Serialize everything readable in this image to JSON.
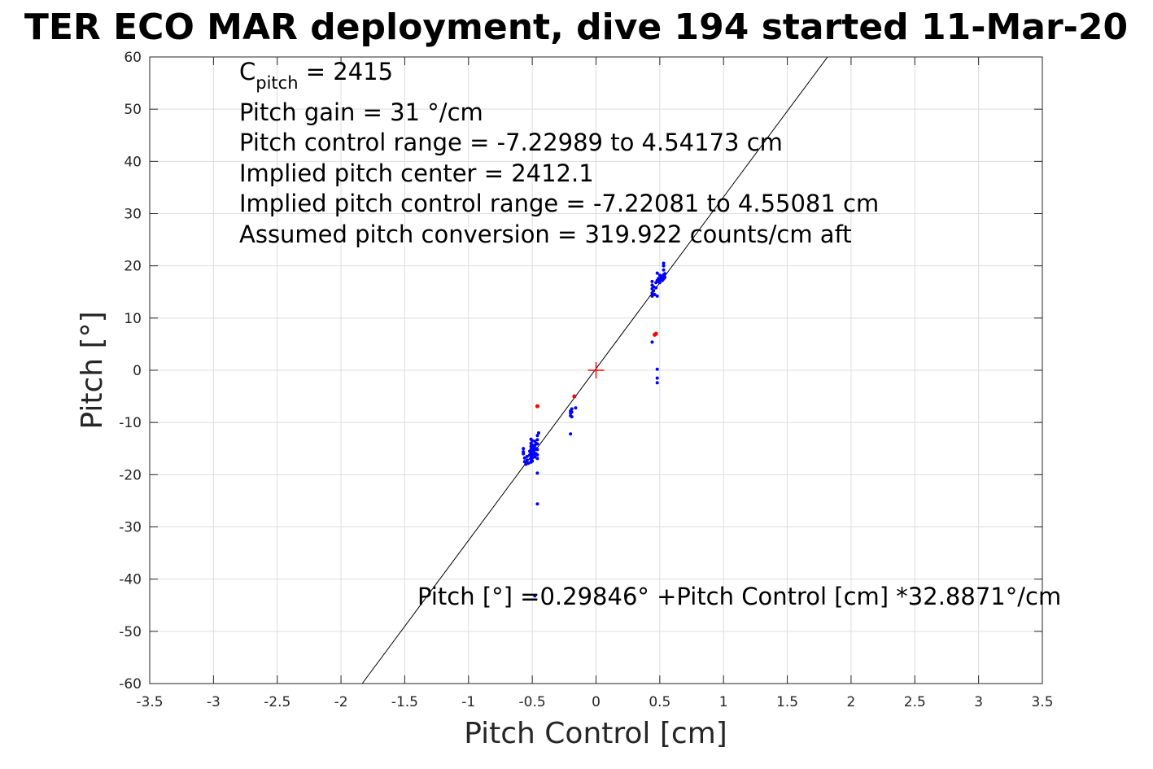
{
  "chart_data": {
    "type": "scatter",
    "title": "TER ECO MAR deployment, dive 194 started 11-Mar-20",
    "xlabel": "Pitch Control [cm]",
    "ylabel": "Pitch [°]",
    "xlim": [
      -3.5,
      3.5
    ],
    "ylim": [
      -60,
      60
    ],
    "xticks": [
      -3.5,
      -3,
      -2.5,
      -2,
      -1.5,
      -1,
      -0.5,
      0,
      0.5,
      1,
      1.5,
      2,
      2.5,
      3,
      3.5
    ],
    "yticks": [
      -60,
      -50,
      -40,
      -30,
      -20,
      -10,
      0,
      10,
      20,
      30,
      40,
      50,
      60
    ],
    "grid": true,
    "annotations": {
      "cpitch_base": "C",
      "cpitch_sub": "pitch",
      "cpitch_value": " = 2415",
      "pitch_gain": "Pitch gain = 31 °/cm",
      "control_range": "Pitch control range = -7.22989 to 4.54173 cm",
      "implied_center": "Implied pitch center = 2412.1",
      "implied_range": "Implied pitch control range = -7.22081 to 4.55081 cm",
      "conversion": "Assumed pitch conversion = 319.922 counts/cm aft",
      "fit_equation": "Pitch [°] =0.29846° +Pitch Control [cm] *32.8871°/cm"
    },
    "fit_line": {
      "intercept": 0.29846,
      "slope": 32.8871,
      "color": "#000000"
    },
    "center_marker": {
      "x": 0,
      "y": 0,
      "color": "#ff0000"
    },
    "series": [
      {
        "color": "#0000ff",
        "points": [
          [
            -0.57,
            -15.0
          ],
          [
            -0.57,
            -15.6
          ],
          [
            -0.57,
            -16.0
          ],
          [
            -0.56,
            -16.8
          ],
          [
            -0.56,
            -17.5
          ],
          [
            -0.55,
            -18.0
          ],
          [
            -0.54,
            -16.5
          ],
          [
            -0.54,
            -17.2
          ],
          [
            -0.53,
            -17.8
          ],
          [
            -0.52,
            -16.2
          ],
          [
            -0.52,
            -15.5
          ],
          [
            -0.51,
            -13.2
          ],
          [
            -0.51,
            -14.0
          ],
          [
            -0.51,
            -14.6
          ],
          [
            -0.51,
            -15.2
          ],
          [
            -0.51,
            -15.8
          ],
          [
            -0.51,
            -16.4
          ],
          [
            -0.51,
            -17.0
          ],
          [
            -0.51,
            -17.6
          ],
          [
            -0.5,
            -13.5
          ],
          [
            -0.5,
            -14.3
          ],
          [
            -0.5,
            -15.0
          ],
          [
            -0.5,
            -15.6
          ],
          [
            -0.5,
            -16.2
          ],
          [
            -0.5,
            -16.8
          ],
          [
            -0.5,
            -17.4
          ],
          [
            -0.49,
            -14.8
          ],
          [
            -0.49,
            -15.5
          ],
          [
            -0.49,
            -16.1
          ],
          [
            -0.48,
            -13.6
          ],
          [
            -0.48,
            -14.4
          ],
          [
            -0.48,
            -15.2
          ],
          [
            -0.48,
            -15.9
          ],
          [
            -0.48,
            -16.6
          ],
          [
            -0.47,
            -14.0
          ],
          [
            -0.47,
            -15.0
          ],
          [
            -0.47,
            -16.0
          ],
          [
            -0.46,
            -12.5
          ],
          [
            -0.46,
            -13.3
          ],
          [
            -0.46,
            -14.1
          ],
          [
            -0.46,
            -15.2
          ],
          [
            -0.46,
            -16.2
          ],
          [
            -0.46,
            -16.9
          ],
          [
            -0.45,
            -12.0
          ],
          [
            -0.46,
            -19.7
          ],
          [
            -0.46,
            -25.6
          ],
          [
            -0.48,
            -43.2
          ],
          [
            -0.2,
            -7.8
          ],
          [
            -0.2,
            -8.2
          ],
          [
            -0.2,
            -8.7
          ],
          [
            -0.19,
            -7.4
          ],
          [
            -0.19,
            -8.0
          ],
          [
            -0.19,
            -8.9
          ],
          [
            -0.2,
            -12.2
          ],
          [
            -0.16,
            -7.2
          ],
          [
            -0.17,
            -5.0
          ],
          [
            0.44,
            14.2
          ],
          [
            0.44,
            14.8
          ],
          [
            0.44,
            15.6
          ],
          [
            0.44,
            16.3
          ],
          [
            0.44,
            17.0
          ],
          [
            0.45,
            15.2
          ],
          [
            0.45,
            16.0
          ],
          [
            0.46,
            14.5
          ],
          [
            0.47,
            15.8
          ],
          [
            0.47,
            16.8
          ],
          [
            0.48,
            14.2
          ],
          [
            0.48,
            17.2
          ],
          [
            0.48,
            18.6
          ],
          [
            0.49,
            17.0
          ],
          [
            0.49,
            17.6
          ],
          [
            0.5,
            16.8
          ],
          [
            0.5,
            17.5
          ],
          [
            0.5,
            18.2
          ],
          [
            0.51,
            17.3
          ],
          [
            0.51,
            18.0
          ],
          [
            0.52,
            17.2
          ],
          [
            0.52,
            17.8
          ],
          [
            0.53,
            17.5
          ],
          [
            0.53,
            18.3
          ],
          [
            0.53,
            19.2
          ],
          [
            0.53,
            20.0
          ],
          [
            0.53,
            20.5
          ],
          [
            0.54,
            17.8
          ],
          [
            0.54,
            18.5
          ],
          [
            0.44,
            5.4
          ],
          [
            0.48,
            0.2
          ],
          [
            0.48,
            -1.5
          ],
          [
            0.48,
            -2.4
          ]
        ]
      },
      {
        "color": "#ff0000",
        "points": [
          [
            -0.46,
            -6.9
          ],
          [
            0.46,
            6.8
          ],
          [
            0.47,
            7.0
          ],
          [
            -0.17,
            -5.0
          ]
        ]
      }
    ]
  }
}
